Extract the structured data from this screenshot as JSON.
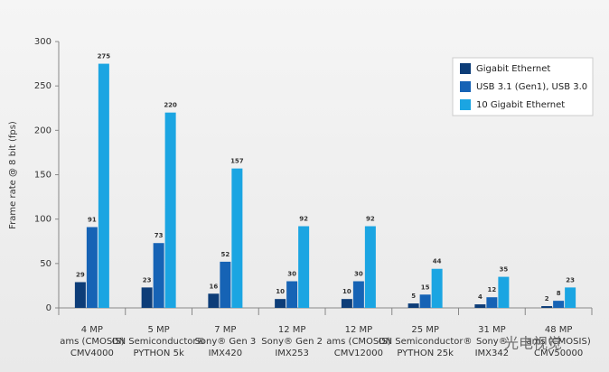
{
  "chart_data": {
    "type": "bar",
    "y_label": "Frame rate @ 8 bit (fps)",
    "categories": [
      [
        "4 MP",
        "ams (CMOSIS)",
        "CMV4000"
      ],
      [
        "5 MP",
        "ON Semiconductor®",
        "PYTHON 5k"
      ],
      [
        "7 MP",
        "Sony® Gen 3",
        "IMX420"
      ],
      [
        "12 MP",
        "Sony® Gen 2",
        "IMX253"
      ],
      [
        "12 MP",
        "ams (CMOSIS)",
        "CMV12000"
      ],
      [
        "25 MP",
        "ON Semiconductor®",
        "PYTHON 25k"
      ],
      [
        "31 MP",
        "Sony®",
        "IMX342"
      ],
      [
        "48 MP",
        "ams (CMOSIS)",
        "CMV50000"
      ]
    ],
    "series": [
      {
        "name": "Gigabit Ethernet",
        "color": "#0d3d78",
        "values": [
          29,
          23,
          16,
          10,
          10,
          5,
          4,
          2
        ]
      },
      {
        "name": "USB 3.1 (Gen1), USB  3.0",
        "color": "#1663b5",
        "values": [
          91,
          73,
          52,
          30,
          30,
          15,
          12,
          8
        ]
      },
      {
        "name": "10 Gigabit Ethernet",
        "color": "#1ba5e2",
        "values": [
          275,
          220,
          157,
          92,
          92,
          44,
          35,
          23
        ]
      }
    ],
    "ylim": [
      0,
      300
    ],
    "yticks": [
      0,
      50,
      100,
      150,
      200,
      250,
      300
    ],
    "legend": "upper right",
    "watermark": "光电视觉"
  }
}
